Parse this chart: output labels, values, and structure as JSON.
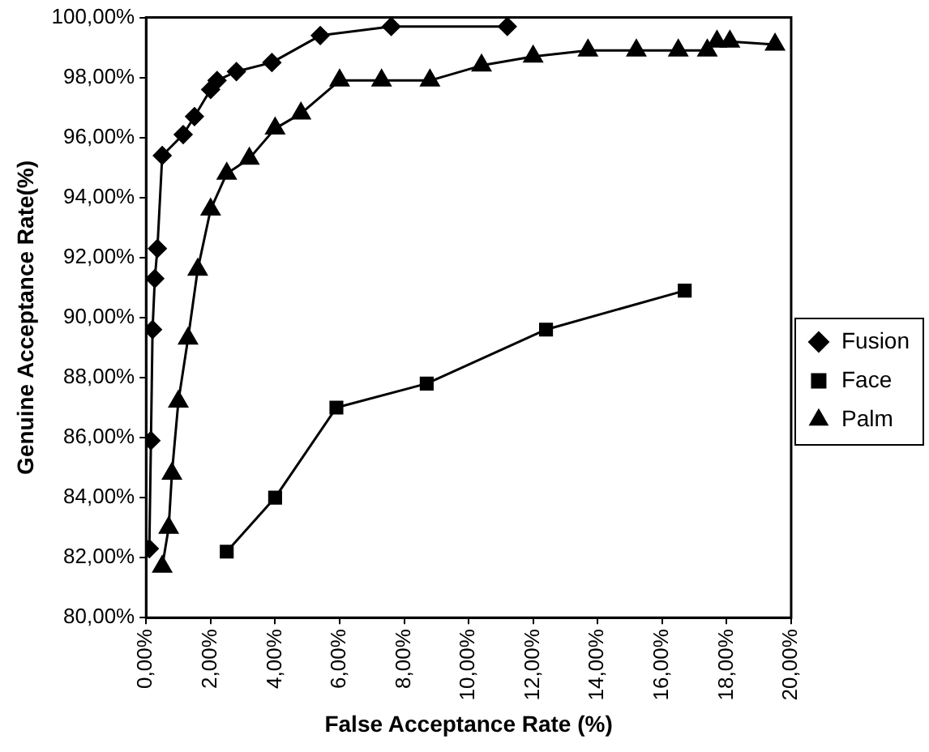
{
  "chart_data": {
    "type": "line",
    "xlabel": "False Acceptance Rate (%)",
    "ylabel": "Genuine Acceptance Rate(%)",
    "xlim": [
      0,
      20
    ],
    "ylim": [
      80,
      100
    ],
    "xticks": [
      {
        "value": 0,
        "label": "0,00%"
      },
      {
        "value": 2,
        "label": "2,00%"
      },
      {
        "value": 4,
        "label": "4,00%"
      },
      {
        "value": 6,
        "label": "6,00%"
      },
      {
        "value": 8,
        "label": "8,00%"
      },
      {
        "value": 10,
        "label": "10,00%"
      },
      {
        "value": 12,
        "label": "12,00%"
      },
      {
        "value": 14,
        "label": "14,00%"
      },
      {
        "value": 16,
        "label": "16,00%"
      },
      {
        "value": 18,
        "label": "18,00%"
      },
      {
        "value": 20,
        "label": "20,00%"
      }
    ],
    "yticks": [
      {
        "value": 80,
        "label": "80,00%"
      },
      {
        "value": 82,
        "label": "82,00%"
      },
      {
        "value": 84,
        "label": "84,00%"
      },
      {
        "value": 86,
        "label": "86,00%"
      },
      {
        "value": 88,
        "label": "88,00%"
      },
      {
        "value": 90,
        "label": "90,00%"
      },
      {
        "value": 92,
        "label": "92,00%"
      },
      {
        "value": 94,
        "label": "94,00%"
      },
      {
        "value": 96,
        "label": "96,00%"
      },
      {
        "value": 98,
        "label": "98,00%"
      },
      {
        "value": 100,
        "label": "100,00%"
      }
    ],
    "grid": false,
    "legend": "right",
    "line_style": "solid",
    "series": [
      {
        "name": "Fusion",
        "color": "#000000",
        "marker": "diamond",
        "x": [
          0.1,
          0.15,
          0.2,
          0.27,
          0.35,
          0.5,
          1.15,
          1.5,
          2.0,
          2.2,
          2.8,
          3.9,
          5.4,
          7.6,
          11.2
        ],
        "values": [
          82.3,
          85.9,
          89.6,
          91.3,
          92.3,
          95.4,
          96.1,
          96.7,
          97.6,
          97.9,
          98.2,
          98.5,
          99.4,
          99.7,
          99.7
        ]
      },
      {
        "name": "Face",
        "color": "#000000",
        "marker": "square",
        "x": [
          2.5,
          4.0,
          5.9,
          8.7,
          12.4,
          16.7
        ],
        "values": [
          82.2,
          84.0,
          87.0,
          87.8,
          89.6,
          90.9
        ]
      },
      {
        "name": "Palm",
        "color": "#000000",
        "marker": "triangle",
        "x": [
          0.5,
          0.7,
          0.8,
          1.0,
          1.3,
          1.6,
          2.0,
          2.5,
          3.2,
          4.0,
          4.8,
          6.0,
          7.3,
          8.8,
          10.4,
          12.0,
          13.7,
          15.2,
          16.5,
          17.4,
          17.7,
          18.1,
          19.5
        ],
        "values": [
          81.7,
          83.0,
          84.8,
          87.2,
          89.3,
          91.6,
          93.6,
          94.8,
          95.3,
          96.3,
          96.8,
          97.9,
          97.9,
          97.9,
          98.4,
          98.7,
          98.9,
          98.9,
          98.9,
          98.9,
          99.2,
          99.2,
          99.1
        ]
      }
    ]
  }
}
